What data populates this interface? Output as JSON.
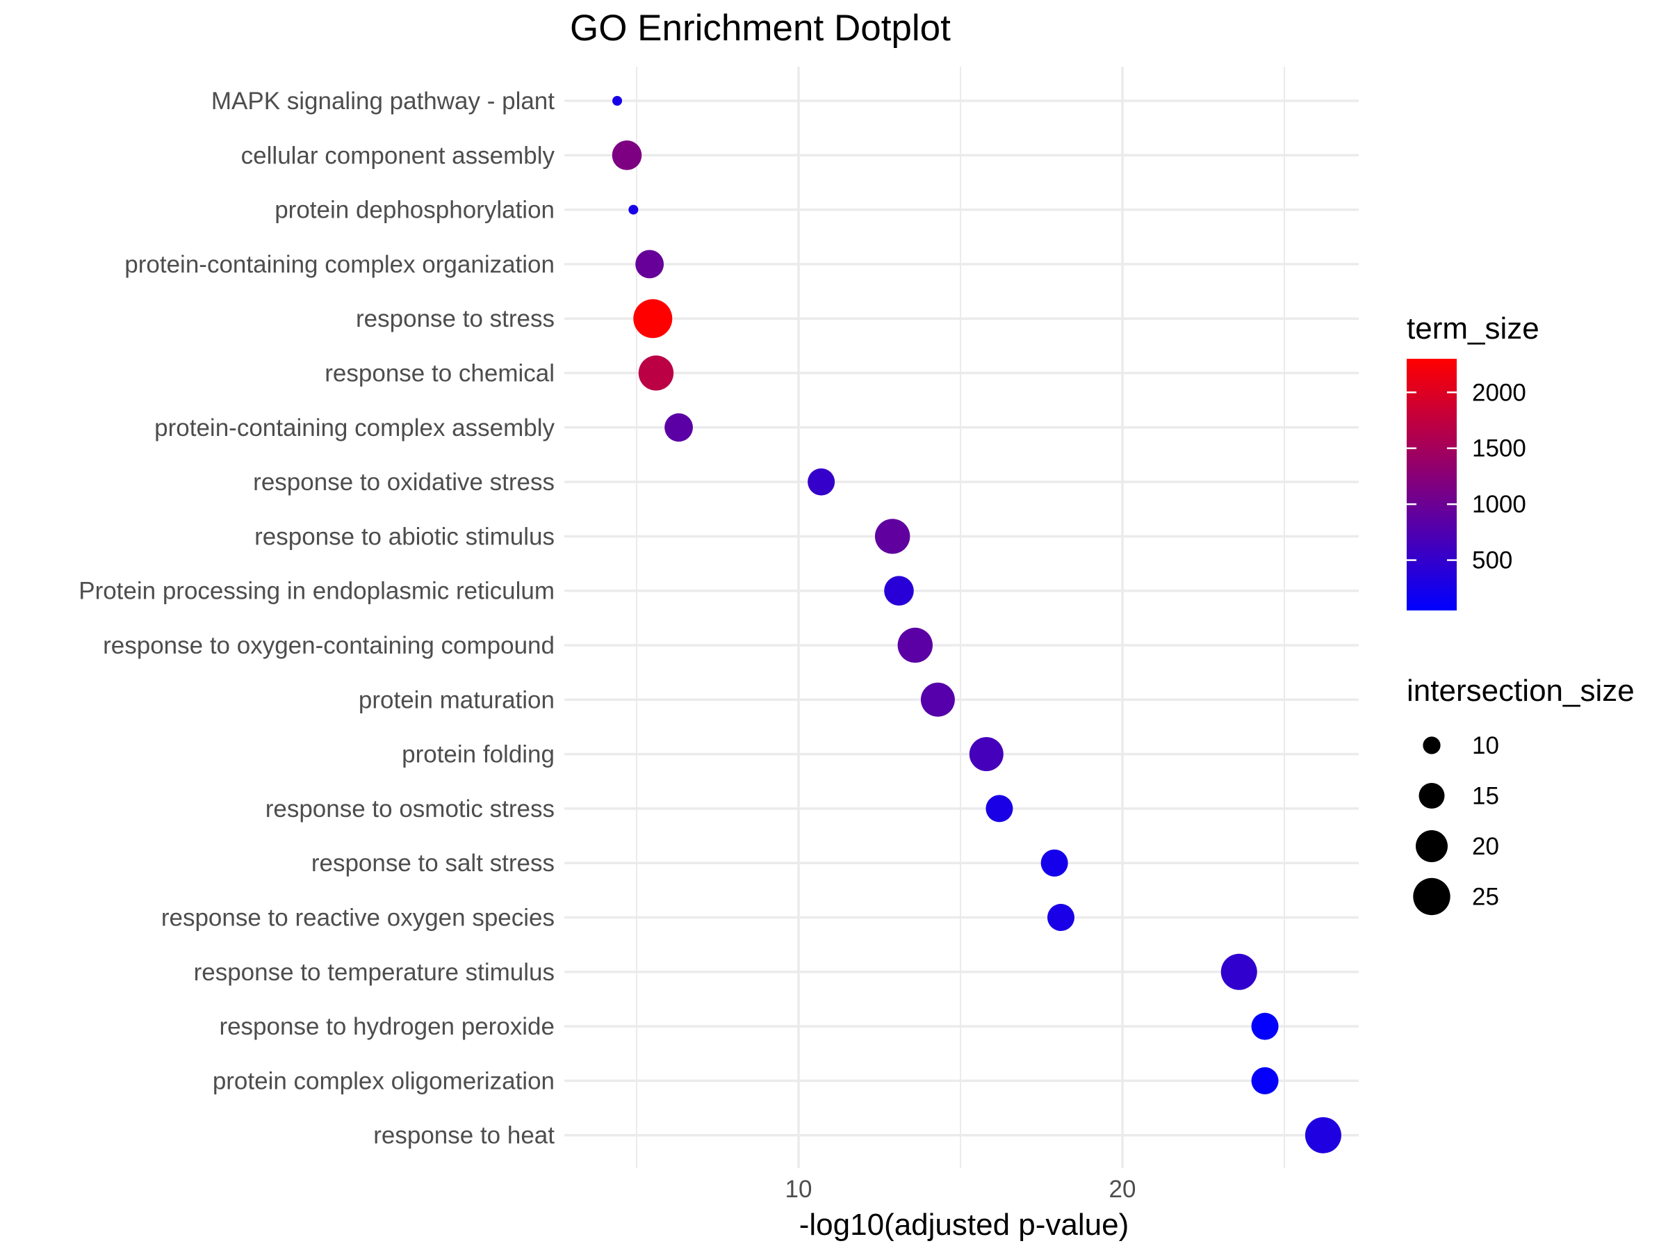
{
  "chart_data": {
    "type": "scatter",
    "title": "GO Enrichment Dotplot",
    "xlabel": "-log10(adjusted p-value)",
    "ylabel": "",
    "xlim": [
      3.8,
      26.6
    ],
    "x_ticks": [
      10,
      20
    ],
    "x_tick_labels": [
      "10",
      "20"
    ],
    "x_minor_ticks": [
      5,
      15,
      25
    ],
    "grid": true,
    "categories": [
      "MAPK signaling pathway - plant",
      "cellular component assembly",
      "protein dephosphorylation",
      "protein-containing complex organization",
      "response to stress",
      "response to chemical",
      "protein-containing complex assembly",
      "response to oxidative stress",
      "response to abiotic stimulus",
      "Protein processing in endoplasmic reticulum",
      "response to oxygen-containing compound",
      "protein maturation",
      "protein folding",
      "response to osmotic stress",
      "response to salt stress",
      "response to reactive oxygen species",
      "response to temperature stimulus",
      "response to hydrogen peroxide",
      "protein complex oligomerization",
      "response to heat"
    ],
    "points": [
      {
        "term": "MAPK signaling pathway - plant",
        "x": 4.4,
        "intersection_size": 7,
        "term_size": 250
      },
      {
        "term": "cellular component assembly",
        "x": 4.7,
        "intersection_size": 18,
        "term_size": 1150
      },
      {
        "term": "protein dephosphorylation",
        "x": 4.9,
        "intersection_size": 7,
        "term_size": 260
      },
      {
        "term": "protein-containing complex organization",
        "x": 5.4,
        "intersection_size": 17,
        "term_size": 950
      },
      {
        "term": "response to stress",
        "x": 5.5,
        "intersection_size": 27,
        "term_size": 2300
      },
      {
        "term": "response to chemical",
        "x": 5.6,
        "intersection_size": 23,
        "term_size": 1700
      },
      {
        "term": "protein-containing complex assembly",
        "x": 6.3,
        "intersection_size": 17,
        "term_size": 850
      },
      {
        "term": "response to oxidative stress",
        "x": 10.7,
        "intersection_size": 16,
        "term_size": 520
      },
      {
        "term": "response to abiotic stimulus",
        "x": 12.9,
        "intersection_size": 23,
        "term_size": 900
      },
      {
        "term": "Protein processing in endoplasmic reticulum",
        "x": 13.1,
        "intersection_size": 18,
        "term_size": 400
      },
      {
        "term": "response to oxygen-containing compound",
        "x": 13.6,
        "intersection_size": 23,
        "term_size": 850
      },
      {
        "term": "protein maturation",
        "x": 14.3,
        "intersection_size": 22,
        "term_size": 800
      },
      {
        "term": "protein folding",
        "x": 15.8,
        "intersection_size": 22,
        "term_size": 650
      },
      {
        "term": "response to osmotic stress",
        "x": 16.2,
        "intersection_size": 16,
        "term_size": 280
      },
      {
        "term": "response to salt stress",
        "x": 17.9,
        "intersection_size": 16,
        "term_size": 230
      },
      {
        "term": "response to reactive oxygen species",
        "x": 18.1,
        "intersection_size": 16,
        "term_size": 270
      },
      {
        "term": "response to temperature stimulus",
        "x": 23.6,
        "intersection_size": 24,
        "term_size": 470
      },
      {
        "term": "response to hydrogen peroxide",
        "x": 24.4,
        "intersection_size": 16,
        "term_size": 80
      },
      {
        "term": "protein complex oligomerization",
        "x": 24.4,
        "intersection_size": 16,
        "term_size": 90
      },
      {
        "term": "response to heat",
        "x": 26.2,
        "intersection_size": 24,
        "term_size": 320
      }
    ],
    "color_legend": {
      "title": "term_size",
      "min": 50,
      "max": 2300,
      "ticks": [
        500,
        1000,
        1500,
        2000
      ],
      "tick_labels": [
        "500",
        "1000",
        "1500",
        "2000"
      ],
      "low_color": "#0000ff",
      "high_color": "#ff0000"
    },
    "size_legend": {
      "title": "intersection_size",
      "values": [
        10,
        15,
        20,
        25
      ],
      "labels": [
        "10",
        "15",
        "20",
        "25"
      ]
    },
    "legend_position": "right"
  }
}
